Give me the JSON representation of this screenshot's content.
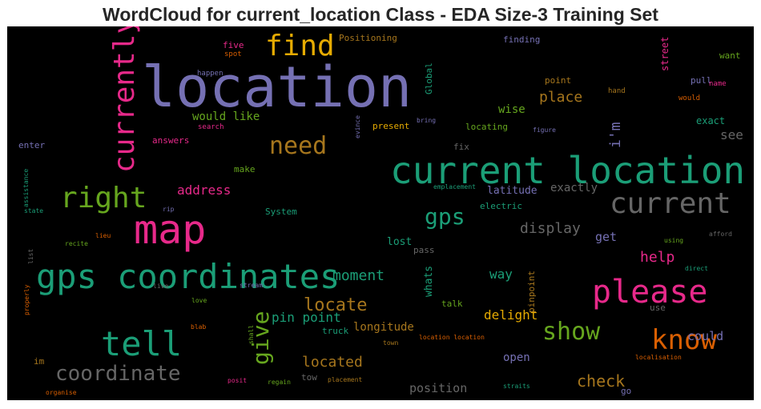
{
  "title": "WordCloud for current_location Class - EDA Size-3 Training Set",
  "chart_data": {
    "type": "wordcloud",
    "background": "#000000",
    "colormap": "Dark2",
    "words": [
      {
        "text": "location",
        "color": "#7570b3"
      },
      {
        "text": "current location",
        "color": "#1b9e77"
      },
      {
        "text": "map",
        "color": "#e7298a"
      },
      {
        "text": "gps coordinates",
        "color": "#1b9e77"
      },
      {
        "text": "please",
        "color": "#e7298a"
      },
      {
        "text": "current",
        "color": "#666666"
      },
      {
        "text": "tell",
        "color": "#1b9e77"
      },
      {
        "text": "know",
        "color": "#d95f02"
      },
      {
        "text": "right",
        "color": "#66a61e"
      },
      {
        "text": "find",
        "color": "#e6ab02"
      },
      {
        "text": "currently",
        "color": "#e7298a"
      },
      {
        "text": "show",
        "color": "#66a61e"
      },
      {
        "text": "coordinate",
        "color": "#666666"
      },
      {
        "text": "need",
        "color": "#a6761d"
      },
      {
        "text": "give",
        "color": "#66a61e"
      },
      {
        "text": "gps",
        "color": "#1b9e77"
      },
      {
        "text": "locate",
        "color": "#a6761d"
      },
      {
        "text": "located",
        "color": "#a6761d"
      },
      {
        "text": "check",
        "color": "#a6761d"
      },
      {
        "text": "i'm",
        "color": "#7570b3"
      },
      {
        "text": "place",
        "color": "#a6761d"
      },
      {
        "text": "display",
        "color": "#666666"
      },
      {
        "text": "moment",
        "color": "#1b9e77"
      },
      {
        "text": "help",
        "color": "#e7298a"
      },
      {
        "text": "address",
        "color": "#e7298a"
      },
      {
        "text": "see",
        "color": "#666666"
      },
      {
        "text": "pin point",
        "color": "#1b9e77"
      },
      {
        "text": "way",
        "color": "#1b9e77"
      },
      {
        "text": "delight",
        "color": "#e6ab02"
      },
      {
        "text": "position",
        "color": "#666666"
      },
      {
        "text": "longitude",
        "color": "#a6761d"
      },
      {
        "text": "would like",
        "color": "#66a61e"
      },
      {
        "text": "get",
        "color": "#7570b3"
      },
      {
        "text": "could",
        "color": "#7570b3"
      },
      {
        "text": "open",
        "color": "#7570b3"
      },
      {
        "text": "whats",
        "color": "#1b9e77"
      },
      {
        "text": "lost",
        "color": "#1b9e77"
      },
      {
        "text": "wise",
        "color": "#66a61e"
      },
      {
        "text": "exactly",
        "color": "#666666"
      },
      {
        "text": "latitude",
        "color": "#7570b3"
      },
      {
        "text": "exact",
        "color": "#1b9e77"
      },
      {
        "text": "street",
        "color": "#e7298a"
      },
      {
        "text": "Positioning",
        "color": "#a6761d"
      },
      {
        "text": "five",
        "color": "#e7298a"
      },
      {
        "text": "finding",
        "color": "#7570b3"
      },
      {
        "text": "point",
        "color": "#a6761d"
      },
      {
        "text": "want",
        "color": "#66a61e"
      },
      {
        "text": "pull",
        "color": "#7570b3"
      },
      {
        "text": "Global",
        "color": "#1b9e77"
      },
      {
        "text": "present",
        "color": "#e6ab02"
      },
      {
        "text": "locating",
        "color": "#66a61e"
      },
      {
        "text": "answers",
        "color": "#e7298a"
      },
      {
        "text": "enter",
        "color": "#7570b3"
      },
      {
        "text": "make",
        "color": "#66a61e"
      },
      {
        "text": "fix",
        "color": "#666666"
      },
      {
        "text": "System",
        "color": "#1b9e77"
      },
      {
        "text": "electric",
        "color": "#1b9e77"
      },
      {
        "text": "pass",
        "color": "#666666"
      },
      {
        "text": "talk",
        "color": "#66a61e"
      },
      {
        "text": "truck",
        "color": "#1b9e77"
      },
      {
        "text": "pinpoint",
        "color": "#a6761d"
      },
      {
        "text": "use",
        "color": "#666666"
      },
      {
        "text": "tow",
        "color": "#666666"
      },
      {
        "text": "im",
        "color": "#a6761d"
      },
      {
        "text": "go",
        "color": "#7570b3"
      },
      {
        "text": "search",
        "color": "#e7298a"
      },
      {
        "text": "spot",
        "color": "#d95f02"
      },
      {
        "text": "happen",
        "color": "#7570b3"
      },
      {
        "text": "hand",
        "color": "#a6761d"
      },
      {
        "text": "would",
        "color": "#d95f02"
      },
      {
        "text": "name",
        "color": "#e7298a"
      },
      {
        "text": "evince",
        "color": "#7570b3"
      },
      {
        "text": "bring",
        "color": "#7570b3"
      },
      {
        "text": "figure",
        "color": "#7570b3"
      },
      {
        "text": "emplacement",
        "color": "#1b9e77"
      },
      {
        "text": "assistance",
        "color": "#1b9e77"
      },
      {
        "text": "state",
        "color": "#1b9e77"
      },
      {
        "text": "rip",
        "color": "#7570b3"
      },
      {
        "text": "lieu",
        "color": "#d95f02"
      },
      {
        "text": "recite",
        "color": "#66a61e"
      },
      {
        "text": "list",
        "color": "#666666"
      },
      {
        "text": "live",
        "color": "#666666"
      },
      {
        "text": "stream",
        "color": "#7570b3"
      },
      {
        "text": "love",
        "color": "#66a61e"
      },
      {
        "text": "properly",
        "color": "#d95f02"
      },
      {
        "text": "blab",
        "color": "#d95f02"
      },
      {
        "text": "shall",
        "color": "#66a61e"
      },
      {
        "text": "location location",
        "color": "#d95f02"
      },
      {
        "text": "town",
        "color": "#a6761d"
      },
      {
        "text": "localisation",
        "color": "#d95f02"
      },
      {
        "text": "posit",
        "color": "#e7298a"
      },
      {
        "text": "regain",
        "color": "#66a61e"
      },
      {
        "text": "placement",
        "color": "#a6761d"
      },
      {
        "text": "straits",
        "color": "#1b9e77"
      },
      {
        "text": "organise",
        "color": "#d95f02"
      },
      {
        "text": "afford",
        "color": "#666666"
      },
      {
        "text": "using",
        "color": "#66a61e"
      },
      {
        "text": "direct",
        "color": "#1b9e77"
      }
    ]
  }
}
